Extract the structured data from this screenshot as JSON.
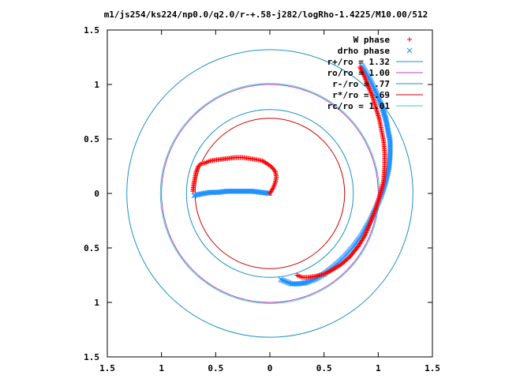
{
  "chart_data": {
    "type": "scatter",
    "title": "m1/js254/ks224/np0.0/q2.0/r-+.58-j282/logRho-1.4225/M10.00/512",
    "xlabel": "",
    "ylabel": "",
    "xlim": [
      -1.5,
      1.5
    ],
    "ylim": [
      -1.5,
      1.5
    ],
    "x_ticks": [
      -1.5,
      -1,
      -0.5,
      0,
      0.5,
      1,
      1.5
    ],
    "y_ticks": [
      -1.5,
      -1,
      -0.5,
      0,
      0.5,
      1,
      1.5
    ],
    "x_tick_labels": [
      "1.5",
      "1",
      "0.5",
      "0",
      "0.5",
      "1",
      "1.5"
    ],
    "y_tick_labels": [
      "1.5",
      "1",
      "0.5",
      "0",
      "0.5",
      "1",
      "1.5"
    ],
    "grid": false,
    "legend_position": "top-right",
    "circles": [
      {
        "name": "r+/ro = 1.32",
        "r": 1.32,
        "color": "#1e90c8"
      },
      {
        "name": "ro/ro = 1.00",
        "r": 1.0,
        "color": "#c040c0"
      },
      {
        "name": "r-/ro = .77",
        "r": 0.77,
        "color": "#1e90c8"
      },
      {
        "name": "r*/ro = .69",
        "r": 0.69,
        "color": "#cc0000"
      },
      {
        "name": "rc/ro = 1.01",
        "r": 1.01,
        "color": "#40c8c8"
      }
    ],
    "series": [
      {
        "name": "W phase",
        "marker": "plus",
        "color": "#ff0000",
        "x": [
          0.0,
          0.03,
          0.05,
          0.06,
          0.05,
          0.02,
          -0.02,
          -0.07,
          -0.12,
          -0.18,
          -0.25,
          -0.32,
          -0.4,
          -0.48,
          -0.55,
          -0.6,
          -0.64,
          -0.66,
          -0.68,
          -0.69,
          -0.7,
          -0.71,
          0.25,
          0.3,
          0.35,
          0.42,
          0.5,
          0.58,
          0.66,
          0.74,
          0.82,
          0.88,
          0.93,
          0.98,
          1.02,
          1.05,
          1.06,
          1.06,
          1.05,
          1.03,
          1.01,
          0.98,
          0.95,
          0.91,
          0.87,
          0.83
        ],
        "y": [
          0.0,
          0.05,
          0.1,
          0.15,
          0.2,
          0.24,
          0.27,
          0.3,
          0.31,
          0.32,
          0.33,
          0.33,
          0.32,
          0.31,
          0.3,
          0.28,
          0.27,
          0.25,
          0.2,
          0.15,
          0.1,
          0.02,
          -0.75,
          -0.77,
          -0.77,
          -0.76,
          -0.74,
          -0.7,
          -0.65,
          -0.58,
          -0.48,
          -0.38,
          -0.26,
          -0.13,
          0.0,
          0.12,
          0.25,
          0.37,
          0.48,
          0.58,
          0.68,
          0.78,
          0.88,
          0.98,
          1.08,
          1.16
        ]
      },
      {
        "name": "drho phase",
        "marker": "cross",
        "color": "#1e90ff",
        "x": [
          0.0,
          -0.08,
          -0.16,
          -0.24,
          -0.32,
          -0.4,
          -0.48,
          -0.55,
          -0.61,
          -0.66,
          -0.7,
          0.1,
          0.15,
          0.2,
          0.26,
          0.33,
          0.41,
          0.5,
          0.59,
          0.68,
          0.77,
          0.85,
          0.92,
          0.98,
          1.03,
          1.07,
          1.1,
          1.11,
          1.11,
          1.09,
          1.07,
          1.04,
          1.0,
          0.96,
          0.92,
          0.88,
          0.85
        ],
        "y": [
          0.0,
          0.01,
          0.02,
          0.02,
          0.02,
          0.02,
          0.01,
          0.01,
          0.0,
          -0.01,
          -0.02,
          -0.79,
          -0.81,
          -0.83,
          -0.83,
          -0.82,
          -0.79,
          -0.74,
          -0.67,
          -0.59,
          -0.49,
          -0.38,
          -0.26,
          -0.13,
          -0.01,
          0.11,
          0.24,
          0.36,
          0.48,
          0.58,
          0.68,
          0.78,
          0.88,
          0.97,
          1.05,
          1.12,
          1.17
        ]
      }
    ]
  }
}
